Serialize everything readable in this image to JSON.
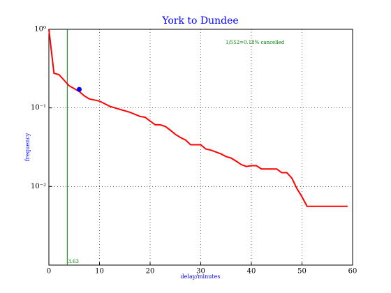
{
  "chart_data": {
    "type": "line",
    "title": "York to Dundee",
    "x_label": "delay/minutes",
    "y_label": "frequency",
    "x": [
      0,
      1,
      2,
      3,
      4,
      5,
      6,
      7,
      8,
      10,
      12,
      14,
      16,
      18,
      19,
      20,
      21,
      22,
      23,
      24,
      25,
      26,
      27,
      28,
      30,
      31,
      32,
      34,
      35,
      36,
      37,
      38,
      39,
      40,
      41,
      42,
      44,
      45,
      46,
      47,
      48,
      49,
      50,
      51,
      59
    ],
    "values": [
      1.0,
      0.276,
      0.265,
      0.225,
      0.191,
      0.176,
      0.162,
      0.142,
      0.13,
      0.122,
      0.105,
      0.096,
      0.088,
      0.078,
      0.076,
      0.068,
      0.061,
      0.061,
      0.058,
      0.052,
      0.046,
      0.042,
      0.039,
      0.034,
      0.034,
      0.03,
      0.029,
      0.026,
      0.024,
      0.023,
      0.021,
      0.019,
      0.018,
      0.0184,
      0.0184,
      0.0167,
      0.0167,
      0.0167,
      0.015,
      0.015,
      0.0128,
      0.0094,
      0.0074,
      0.0056,
      0.0056
    ],
    "color": "#ff0000",
    "marker": {
      "x": 6,
      "y": 0.172,
      "color": "#0000ff"
    },
    "vline": {
      "x": 3.63,
      "label": "3.63",
      "color": "#007f00"
    },
    "annotation": "1/552=0.18% cancelled",
    "annotation_color": "#007f00",
    "xlim": [
      0,
      60
    ],
    "xticks": [
      0,
      10,
      20,
      30,
      40,
      50,
      60
    ],
    "ylim": [
      0.001,
      1
    ],
    "y_scale": "log",
    "yticks": [
      {
        "value": 1,
        "label": "10⁰"
      },
      {
        "value": 0.1,
        "label": "10⁻¹"
      },
      {
        "value": 0.01,
        "label": "10⁻²"
      }
    ],
    "grid": true
  }
}
